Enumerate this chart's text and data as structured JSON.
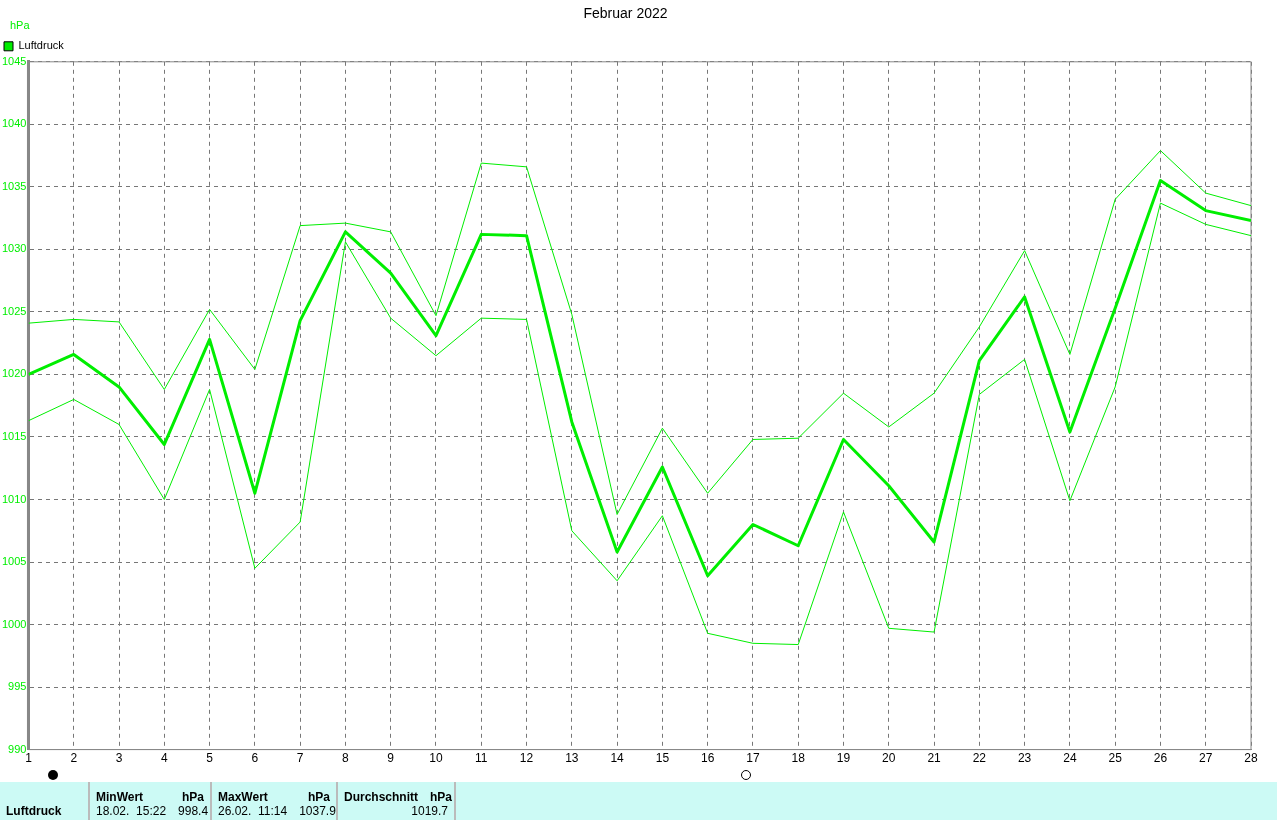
{
  "chart_data": {
    "type": "line",
    "title": "Februar 2022",
    "ylabel": "hPa",
    "x": [
      1,
      2,
      3,
      4,
      5,
      6,
      7,
      8,
      9,
      10,
      11,
      12,
      13,
      14,
      15,
      16,
      17,
      18,
      19,
      20,
      21,
      22,
      23,
      24,
      25,
      26,
      27,
      28
    ],
    "series": [
      {
        "name": "Luftdruck",
        "color": "#00ee00",
        "values": [
          1020.0,
          1021.6,
          1019.0,
          1014.4,
          1022.8,
          1010.5,
          1024.3,
          1031.4,
          1028.1,
          1023.1,
          1031.2,
          1031.1,
          1016.2,
          1005.8,
          1012.6,
          1003.9,
          1008.0,
          1006.3,
          1014.8,
          1011.1,
          1006.6,
          1021.1,
          1026.2,
          1015.4,
          1025.3,
          1035.5,
          1033.1,
          1032.3
        ]
      },
      {
        "color": "#00ee00",
        "values": [
          1024.1,
          1024.4,
          1024.2,
          1018.8,
          1025.2,
          1020.4,
          1031.9,
          1032.1,
          1031.4,
          1024.7,
          1036.9,
          1036.6,
          1024.8,
          1008.8,
          1015.7,
          1010.5,
          1014.8,
          1014.9,
          1018.5,
          1015.8,
          1018.5,
          1023.8,
          1029.9,
          1021.6,
          1034.0,
          1037.9,
          1034.5,
          1033.5
        ]
      },
      {
        "color": "#00ee00",
        "values": [
          1016.3,
          1018.0,
          1016.0,
          1010.0,
          1018.8,
          1004.5,
          1008.2,
          1030.6,
          1024.5,
          1021.5,
          1024.5,
          1024.4,
          1007.5,
          1003.5,
          1008.7,
          999.3,
          998.5,
          998.4,
          1009.0,
          999.7,
          999.4,
          1018.4,
          1021.2,
          1009.9,
          1019.0,
          1033.7,
          1032.0,
          1031.1
        ]
      }
    ],
    "xlim": [
      1,
      28
    ],
    "xticks": [
      1,
      2,
      3,
      4,
      5,
      6,
      7,
      8,
      9,
      10,
      11,
      12,
      13,
      14,
      15,
      16,
      17,
      18,
      19,
      20,
      21,
      22,
      23,
      24,
      25,
      26,
      27,
      28
    ],
    "ylim": [
      990,
      1045
    ],
    "yticks": [
      990,
      995,
      1000,
      1005,
      1010,
      1015,
      1020,
      1025,
      1030,
      1035,
      1040,
      1045
    ],
    "grid": true,
    "legend": "top left",
    "marker": "none",
    "line_style": "solid",
    "annotations": [
      "Luftdruck",
      "MinWert",
      "hPa",
      "18.02.  15:22",
      "998.4",
      "MaxWert",
      "hPa",
      "26.02.  11:14",
      "1037.9",
      "Durchschnitt",
      "hPa",
      "1019.7"
    ]
  }
}
